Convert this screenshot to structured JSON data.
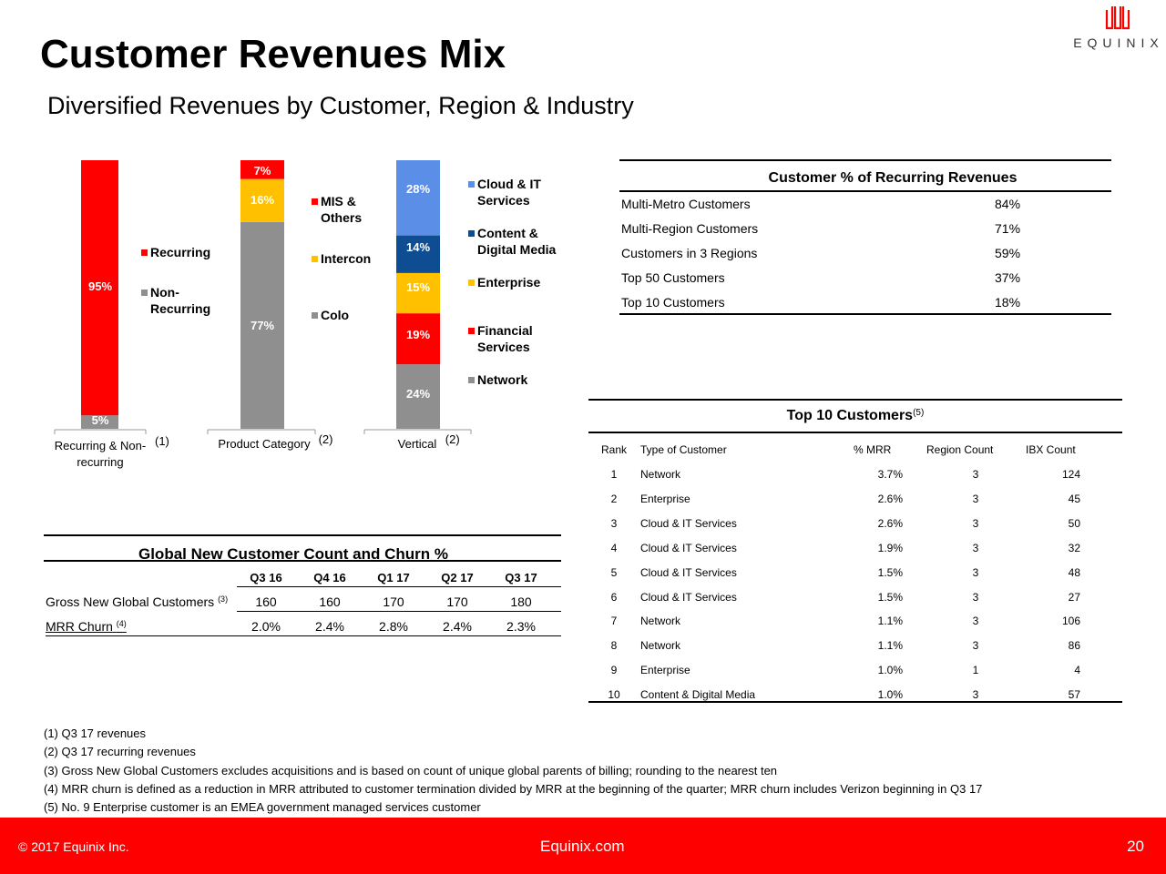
{
  "title": "Customer Revenues Mix",
  "subtitle": "Diversified Revenues by Customer, Region & Industry",
  "logo": {
    "text": "EQUINIX",
    "icon": "equinix-logo-icon",
    "color": "#ff0000"
  },
  "colors": {
    "red": "#ff0000",
    "gray": "#8f8f8f",
    "yellow": "#ffc000",
    "navy": "#0f4d92",
    "blue": "#5b8ee6"
  },
  "chart_data": [
    {
      "type": "bar",
      "stacked": true,
      "category": "Recurring & Non-recurring",
      "category_lines": [
        "Recurring & Non-",
        "recurring"
      ],
      "footnote": "(1)",
      "series": [
        {
          "name": "Non-Recurring",
          "value": 5,
          "label": "5%",
          "color": "#8f8f8f"
        },
        {
          "name": "Recurring",
          "value": 95,
          "label": "95%",
          "color": "#ff0000"
        }
      ],
      "legend_lines": [
        [
          "Recurring"
        ],
        [
          "Non-",
          "Recurring"
        ]
      ]
    },
    {
      "type": "bar",
      "stacked": true,
      "category": "Product Category",
      "footnote": "(2)",
      "series": [
        {
          "name": "Colo",
          "value": 77,
          "label": "77%",
          "color": "#8f8f8f"
        },
        {
          "name": "Intercon",
          "value": 16,
          "label": "16%",
          "color": "#ffc000"
        },
        {
          "name": "MIS & Others",
          "value": 7,
          "label": "7%",
          "color": "#ff0000"
        }
      ],
      "legend_lines": [
        [
          "MIS &",
          "Others"
        ],
        [
          "Intercon"
        ],
        [
          "Colo"
        ]
      ]
    },
    {
      "type": "bar",
      "stacked": true,
      "category": "Vertical",
      "footnote": "(2)",
      "series": [
        {
          "name": "Network",
          "value": 24,
          "label": "24%",
          "color": "#8f8f8f"
        },
        {
          "name": "Financial Services",
          "value": 19,
          "label": "19%",
          "color": "#ff0000"
        },
        {
          "name": "Enterprise",
          "value": 15,
          "label": "15%",
          "color": "#ffc000"
        },
        {
          "name": "Content & Digital Media",
          "value": 14,
          "label": "14%",
          "color": "#0f4d92"
        },
        {
          "name": "Cloud & IT Services",
          "value": 28,
          "label": "28%",
          "color": "#5b8ee6"
        }
      ],
      "legend_lines": [
        [
          "Cloud & IT",
          "Services"
        ],
        [
          "Content &",
          "Digital Media"
        ],
        [
          "Enterprise"
        ],
        [
          "Financial",
          "Services"
        ],
        [
          "Network"
        ]
      ]
    }
  ],
  "customer_pct": {
    "title": "Customer % of Recurring Revenues",
    "rows": [
      {
        "label": "Multi-Metro Customers",
        "value": "84%"
      },
      {
        "label": "Multi-Region Customers",
        "value": "71%"
      },
      {
        "label": "Customers in 3 Regions",
        "value": "59%"
      },
      {
        "label": "Top 50 Customers",
        "value": "37%"
      },
      {
        "label": "Top 10 Customers",
        "value": "18%"
      }
    ]
  },
  "top10": {
    "title": "Top 10 Customers",
    "title_note": "(5)",
    "headers": {
      "rank": "Rank",
      "type": "Type of Customer",
      "mrr": "% MRR",
      "region": "Region Count",
      "ibx": "IBX Count"
    },
    "rows": [
      {
        "rank": "1",
        "type": "Network",
        "mrr": "3.7%",
        "region": "3",
        "ibx": "124"
      },
      {
        "rank": "2",
        "type": "Enterprise",
        "mrr": "2.6%",
        "region": "3",
        "ibx": "45"
      },
      {
        "rank": "3",
        "type": "Cloud & IT Services",
        "mrr": "2.6%",
        "region": "3",
        "ibx": "50"
      },
      {
        "rank": "4",
        "type": "Cloud & IT Services",
        "mrr": "1.9%",
        "region": "3",
        "ibx": "32"
      },
      {
        "rank": "5",
        "type": "Cloud & IT Services",
        "mrr": "1.5%",
        "region": "3",
        "ibx": "48"
      },
      {
        "rank": "6",
        "type": "Cloud & IT Services",
        "mrr": "1.5%",
        "region": "3",
        "ibx": "27"
      },
      {
        "rank": "7",
        "type": "Network",
        "mrr": "1.1%",
        "region": "3",
        "ibx": "106"
      },
      {
        "rank": "8",
        "type": "Network",
        "mrr": "1.1%",
        "region": "3",
        "ibx": "86"
      },
      {
        "rank": "9",
        "type": "Enterprise",
        "mrr": "1.0%",
        "region": "1",
        "ibx": "4"
      },
      {
        "rank": "10",
        "type": "Content & Digital Media",
        "mrr": "1.0%",
        "region": "3",
        "ibx": "57"
      }
    ]
  },
  "churn": {
    "title": "Global New Customer Count and Churn %",
    "quarters": [
      "Q3 16",
      "Q4 16",
      "Q1 17",
      "Q2 17",
      "Q3 17"
    ],
    "gross_label": "Gross New Global Customers",
    "gross_note": "(3)",
    "gross_values": [
      "160",
      "160",
      "170",
      "170",
      "180"
    ],
    "churn_label": "MRR Churn",
    "churn_note": "(4)",
    "churn_values": [
      "2.0%",
      "2.4%",
      "2.8%",
      "2.4%",
      "2.3%"
    ]
  },
  "footnotes": [
    "(1) Q3 17 revenues",
    "(2) Q3 17 recurring revenues",
    "(3) Gross New Global Customers excludes acquisitions and is based on count of unique global parents of billing; rounding to the nearest ten",
    "(4) MRR churn is defined as a reduction in MRR attributed to customer termination divided by MRR at the beginning of the quarter; MRR churn includes Verizon beginning in Q3 17",
    "(5) No. 9 Enterprise customer is an EMEA government managed services customer"
  ],
  "footer": {
    "copyright": "© 2017 Equinix Inc.",
    "site": "Equinix.com",
    "page": "20"
  }
}
